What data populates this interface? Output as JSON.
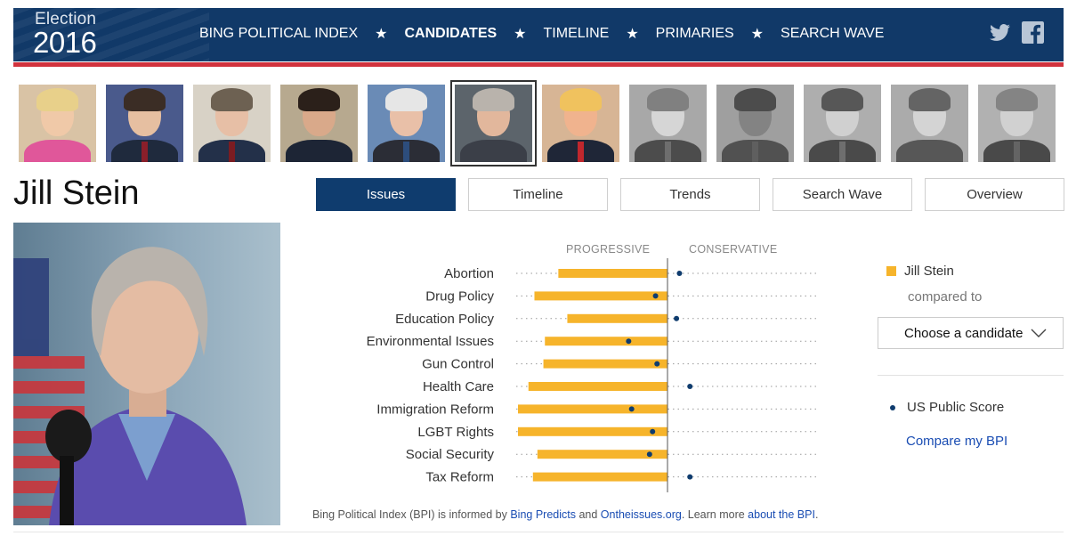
{
  "header": {
    "logo_top": "Election",
    "logo_year": "2016",
    "nav": [
      {
        "label": "BING POLITICAL INDEX",
        "active": false
      },
      {
        "label": "CANDIDATES",
        "active": true
      },
      {
        "label": "TIMELINE",
        "active": false
      },
      {
        "label": "PRIMARIES",
        "active": false
      },
      {
        "label": "SEARCH WAVE",
        "active": false
      }
    ],
    "nav_separator": "★",
    "social_icons": [
      "twitter-icon",
      "facebook-icon"
    ]
  },
  "candidate_strip": [
    {
      "name": "hillary-clinton",
      "selected": false,
      "greyed": false
    },
    {
      "name": "ted-cruz",
      "selected": false,
      "greyed": false
    },
    {
      "name": "john-kasich",
      "selected": false,
      "greyed": false
    },
    {
      "name": "marco-rubio",
      "selected": false,
      "greyed": false
    },
    {
      "name": "bernie-sanders",
      "selected": false,
      "greyed": false
    },
    {
      "name": "jill-stein",
      "selected": true,
      "greyed": false
    },
    {
      "name": "donald-trump",
      "selected": false,
      "greyed": false
    },
    {
      "name": "jeb-bush",
      "selected": false,
      "greyed": true
    },
    {
      "name": "ben-carson",
      "selected": false,
      "greyed": true
    },
    {
      "name": "chris-christie",
      "selected": false,
      "greyed": true
    },
    {
      "name": "carly-fiorina",
      "selected": false,
      "greyed": true
    },
    {
      "name": "mike-huckabee",
      "selected": false,
      "greyed": true
    }
  ],
  "candidate_name": "Jill Stein",
  "tabs": [
    {
      "label": "Issues",
      "active": true
    },
    {
      "label": "Timeline",
      "active": false
    },
    {
      "label": "Trends",
      "active": false
    },
    {
      "label": "Search Wave",
      "active": false
    },
    {
      "label": "Overview",
      "active": false
    }
  ],
  "chart_data": {
    "type": "bar",
    "axis_left_label": "PROGRESSIVE",
    "axis_right_label": "CONSERVATIVE",
    "xlim": [
      -100,
      100
    ],
    "categories": [
      "Abortion",
      "Drug Policy",
      "Education Policy",
      "Environmental Issues",
      "Gun Control",
      "Health Care",
      "Immigration Reform",
      "LGBT Rights",
      "Social Security",
      "Tax Reform"
    ],
    "series": [
      {
        "name": "Jill Stein",
        "color": "#f6b42b",
        "values": [
          -73,
          -89,
          -67,
          -82,
          -83,
          -93,
          -100,
          -100,
          -87,
          -90
        ]
      },
      {
        "name": "US Public Score",
        "color": "#0f3c6e",
        "values": [
          8,
          -8,
          6,
          -26,
          -7,
          15,
          -24,
          -10,
          -12,
          15
        ]
      }
    ]
  },
  "legend": {
    "candidate": "Jill Stein",
    "compared_to": "compared to",
    "select_placeholder": "Choose a candidate",
    "public_score": "US Public Score",
    "compare_link": "Compare my BPI"
  },
  "footnote": {
    "text1": "Bing Political Index (BPI) is informed by ",
    "link1": "Bing Predicts",
    "text2": " and ",
    "link2": "Ontheissues.org",
    "text3": ". Learn more ",
    "link3": "about the BPI",
    "text4": "."
  },
  "colors": {
    "navy": "#113968",
    "red": "#d1323d",
    "bar": "#f6b42b",
    "dot": "#0f3c6e",
    "link": "#1a4db3"
  }
}
